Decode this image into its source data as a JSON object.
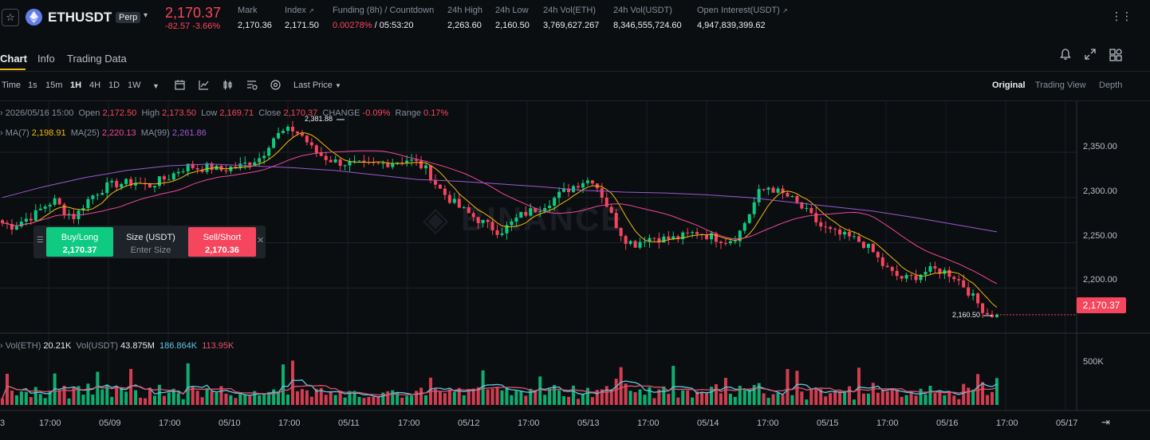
{
  "ticker": {
    "symbol": "ETHUSDT",
    "badge": "Perp",
    "last_price": "2,170.37",
    "change": "-82.57 -3.66%",
    "stats": [
      {
        "label": "Mark",
        "value": "2,170.36"
      },
      {
        "label": "Index",
        "value": "2,171.50"
      },
      {
        "label": "Funding (8h) / Countdown",
        "value_a": "0.00278%",
        "value_b": " / 05:53:20"
      },
      {
        "label": "24h High",
        "value": "2,263.60"
      },
      {
        "label": "24h Low",
        "value": "2,160.50"
      },
      {
        "label": "24h Vol(ETH)",
        "value": "3,769,627.267"
      },
      {
        "label": "24h Vol(USDT)",
        "value": "8,346,555,724.60"
      },
      {
        "label": "Open Interest(USDT)",
        "value": "4,947,839,399.62"
      }
    ]
  },
  "tabs": [
    "Chart",
    "Info",
    "Trading Data"
  ],
  "toolbar": {
    "intervals": [
      "Time",
      "1s",
      "15m",
      "1H",
      "4H",
      "1D",
      "1W"
    ],
    "active_interval": "1H",
    "price_type": "Last Price",
    "views": [
      "Original",
      "Trading View",
      "Depth"
    ],
    "active_view": "Original"
  },
  "legend": {
    "date": "2026/05/16 15:00",
    "open_label": "Open",
    "open": "2,172.50",
    "high_label": "High",
    "high": "2,173.50",
    "low_label": "Low",
    "low": "2,169.71",
    "close_label": "Close",
    "close": "2,170.37",
    "change_label": "CHANGE",
    "change": "-0.09%",
    "range_label": "Range",
    "range": "0.17%",
    "ma7_label": "MA(7)",
    "ma7": "2,198.91",
    "ma25_label": "MA(25)",
    "ma25": "2,220.13",
    "ma99_label": "MA(99)",
    "ma99": "2,261.86",
    "vol_eth_label": "Vol(ETH)",
    "vol_eth": "20.21K",
    "vol_usdt_label": "Vol(USDT)",
    "vol_usdt": "43.875M",
    "vol_ma1": "186.864K",
    "vol_ma2": "113.95K"
  },
  "order_panel": {
    "buy_label": "Buy/Long",
    "buy_price": "2,170.37",
    "size_label": "Size (USDT)",
    "size_placeholder": "Enter Size",
    "sell_label": "Sell/Short",
    "sell_price": "2,170.36"
  },
  "chart_data": {
    "type": "candlestick",
    "price_axis": [
      "2,350.00",
      "2,300.00",
      "2,250.00",
      "2,200.00"
    ],
    "volume_axis": [
      "500K"
    ],
    "time_axis": [
      "17:00",
      "05/09",
      "17:00",
      "05/10",
      "17:00",
      "05/11",
      "17:00",
      "05/12",
      "17:00",
      "05/13",
      "17:00",
      "05/14",
      "17:00",
      "05/15",
      "17:00",
      "05/16",
      "17:00",
      "05/17"
    ],
    "high_marker": "2,381.88",
    "low_marker": "2,160.50",
    "last_price": "2,170.37",
    "ylim": [
      2150,
      2395
    ],
    "close_path": [
      2272,
      2268,
      2275,
      2280,
      2290,
      2297,
      2285,
      2278,
      2295,
      2305,
      2312,
      2315,
      2316,
      2317,
      2312,
      2318,
      2322,
      2330,
      2335,
      2332,
      2334,
      2330,
      2333,
      2335,
      2340,
      2345,
      2365,
      2372,
      2375,
      2368,
      2352,
      2345,
      2340,
      2338,
      2337,
      2335,
      2336,
      2338,
      2340,
      2342,
      2338,
      2330,
      2312,
      2300,
      2290,
      2282,
      2275,
      2268,
      2262,
      2270,
      2280,
      2285,
      2290,
      2297,
      2305,
      2312,
      2318,
      2320,
      2300,
      2275,
      2255,
      2248,
      2255,
      2256,
      2254,
      2255,
      2258,
      2262,
      2258,
      2255,
      2252,
      2258,
      2280,
      2305,
      2312,
      2305,
      2300,
      2290,
      2280,
      2268,
      2262,
      2258,
      2255,
      2250,
      2240,
      2225,
      2215,
      2210,
      2212,
      2218,
      2220,
      2218,
      2212,
      2200,
      2185,
      2172,
      2170
    ],
    "ma99_path": [
      2300,
      2312,
      2322,
      2330,
      2335,
      2337,
      2335,
      2333,
      2330,
      2325,
      2320,
      2318,
      2315,
      2312,
      2308,
      2306,
      2305,
      2303,
      2300,
      2295,
      2290,
      2285,
      2278,
      2270,
      2262
    ]
  }
}
